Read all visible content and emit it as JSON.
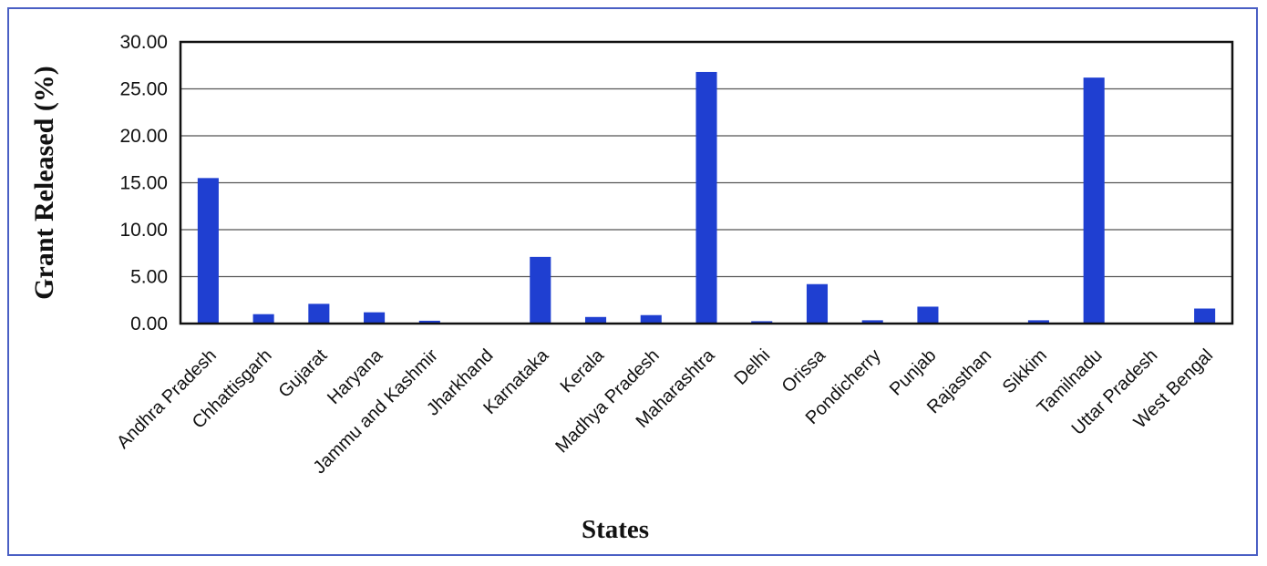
{
  "chart_data": {
    "type": "bar",
    "title": "",
    "xlabel": "States",
    "ylabel": "Grant Released (%)",
    "ylim": [
      0,
      30
    ],
    "yticks": [
      "0.00",
      "5.00",
      "10.00",
      "15.00",
      "20.00",
      "25.00",
      "30.00"
    ],
    "grid": true,
    "legend": "none",
    "bar_color": "#1f3fd1",
    "categories": [
      "Andhra Pradesh",
      "Chhattisgarh",
      "Gujarat",
      "Haryana",
      "Jammu and Kashmir",
      "Jharkhand",
      "Karnataka",
      "Kerala",
      "Madhya Pradesh",
      "Maharashtra",
      "Delhi",
      "Orissa",
      "Pondicherry",
      "Punjab",
      "Rajasthan",
      "Sikkim",
      "Tamilnadu",
      "Uttar Pradesh",
      "West Bengal"
    ],
    "values": [
      15.5,
      1.0,
      2.1,
      1.2,
      0.3,
      0.05,
      7.1,
      0.7,
      0.9,
      26.8,
      0.25,
      4.2,
      0.35,
      1.8,
      0.05,
      0.35,
      26.2,
      0.02,
      1.6
    ]
  }
}
